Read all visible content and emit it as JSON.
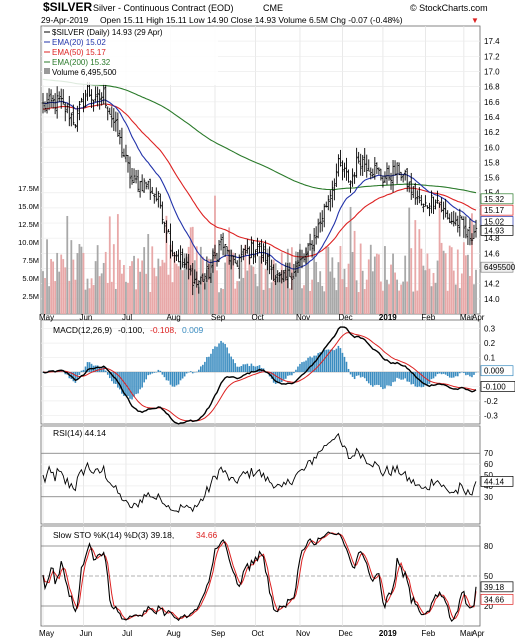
{
  "header": {
    "symbol": "$SILVER",
    "name": "Silver - Continuous Contract (EOD)",
    "exchange": "CME",
    "watermark": "© StockCharts.com",
    "date": "29-Apr-2019",
    "quote": "Open 15.11  High 15.11  Low 14.90  Close 14.93  Volume 6.5M  Chg -0.07 (-0.48%)",
    "down_arrow": "▼"
  },
  "legend": {
    "l1": "$SILVER (Daily) 14.93 (29 Apr)",
    "l2": "EMA(20) 15.02",
    "l3": "EMA(50) 15.17",
    "l4": "EMA(200) 15.32",
    "l5": "Volume 6,495,500"
  },
  "panels": {
    "macd_title": "MACD(12,26,9)",
    "macd_v1": "-0.100,",
    "macd_v2": "-0.108,",
    "macd_v3": "0.009",
    "rsi_title": "RSI(14) 44.14",
    "sto_title": "Slow STO %K(14) %D(3) 39.18,",
    "sto_v2": "34.66"
  },
  "colors": {
    "price": "#000000",
    "ema20": "#2233aa",
    "ema50": "#dd2222",
    "ema200": "#2a7a2a",
    "vol_up": "#a8a8a8",
    "vol_down": "#e8a8a8",
    "hist": "#3a8cc0",
    "macd_signal": "#dd2222"
  },
  "chart_data": [
    {
      "type": "ohlc",
      "title": "$SILVER Silver - Continuous Contract (EOD) CME",
      "months": [
        "May",
        "Jun",
        "Jul",
        "Aug",
        "Sep",
        "Oct",
        "Nov",
        "Dec",
        "2019",
        "Feb",
        "Mar",
        "Apr"
      ],
      "ylim": [
        13.8,
        17.6
      ],
      "y_ticks": [
        14.0,
        14.2,
        14.4,
        14.6,
        14.8,
        15.0,
        15.2,
        15.4,
        15.6,
        15.8,
        16.0,
        16.2,
        16.4,
        16.6,
        16.8,
        17.0,
        17.2,
        17.4
      ],
      "close_anchors": [
        [
          0,
          16.55
        ],
        [
          8,
          16.6
        ],
        [
          16,
          16.35
        ],
        [
          22,
          16.75
        ],
        [
          26,
          16.6
        ],
        [
          30,
          16.7
        ],
        [
          36,
          16.25
        ],
        [
          44,
          15.55
        ],
        [
          52,
          15.5
        ],
        [
          58,
          15.25
        ],
        [
          64,
          14.65
        ],
        [
          70,
          14.45
        ],
        [
          76,
          14.2
        ],
        [
          82,
          14.35
        ],
        [
          88,
          14.75
        ],
        [
          94,
          14.45
        ],
        [
          100,
          14.6
        ],
        [
          106,
          14.7
        ],
        [
          112,
          14.45
        ],
        [
          118,
          14.2
        ],
        [
          124,
          14.4
        ],
        [
          130,
          14.55
        ],
        [
          136,
          14.95
        ],
        [
          140,
          15.25
        ],
        [
          146,
          15.75
        ],
        [
          152,
          15.55
        ],
        [
          156,
          15.85
        ],
        [
          162,
          15.75
        ],
        [
          168,
          15.6
        ],
        [
          176,
          15.7
        ],
        [
          182,
          15.45
        ],
        [
          188,
          15.2
        ],
        [
          194,
          15.35
        ],
        [
          200,
          15.05
        ],
        [
          206,
          15.0
        ],
        [
          210,
          14.82
        ],
        [
          214,
          14.93
        ]
      ],
      "series_last": {
        "close": 14.93,
        "ema20": 15.02,
        "ema50": 15.17,
        "ema200": 15.32
      },
      "volume_ticks": [
        "2.5M",
        "5.0M",
        "7.5M",
        "10.0M",
        "12.5M",
        "15.0M",
        "17.5M"
      ],
      "volume_last": "6,495,500",
      "volume_last_badge": "6495500"
    },
    {
      "type": "line",
      "title": "MACD(12,26,9)",
      "y_ticks": [
        -0.3,
        -0.2,
        -0.1,
        0.0,
        0.1,
        0.2,
        0.3
      ],
      "tick_labels": [
        "-0.3",
        "-0.2",
        "-0.1",
        "0.0",
        "0.1",
        "0.2",
        "0.3"
      ],
      "ylim": [
        -0.36,
        0.36
      ],
      "series": [
        {
          "name": "MACD",
          "last": -0.1
        },
        {
          "name": "Signal",
          "last": -0.108
        },
        {
          "name": "Histogram",
          "last": 0.009
        }
      ],
      "badges": [
        "0.009",
        "-0.100"
      ]
    },
    {
      "type": "line",
      "title": "RSI(14)",
      "ylim": [
        5,
        95
      ],
      "y_ticks": [
        30,
        40,
        50,
        60,
        70
      ],
      "guides": [
        30,
        70
      ],
      "last": 44.14,
      "badge": "44.14"
    },
    {
      "type": "line",
      "title": "Slow STO %K(14) %D(3)",
      "ylim": [
        0,
        100
      ],
      "y_ticks": [
        20,
        50,
        80
      ],
      "guides": [
        20,
        50,
        80
      ],
      "series": [
        {
          "name": "%K",
          "last": 39.18
        },
        {
          "name": "%D",
          "last": 34.66
        }
      ],
      "badges": [
        "39.18",
        "34.66"
      ]
    }
  ]
}
